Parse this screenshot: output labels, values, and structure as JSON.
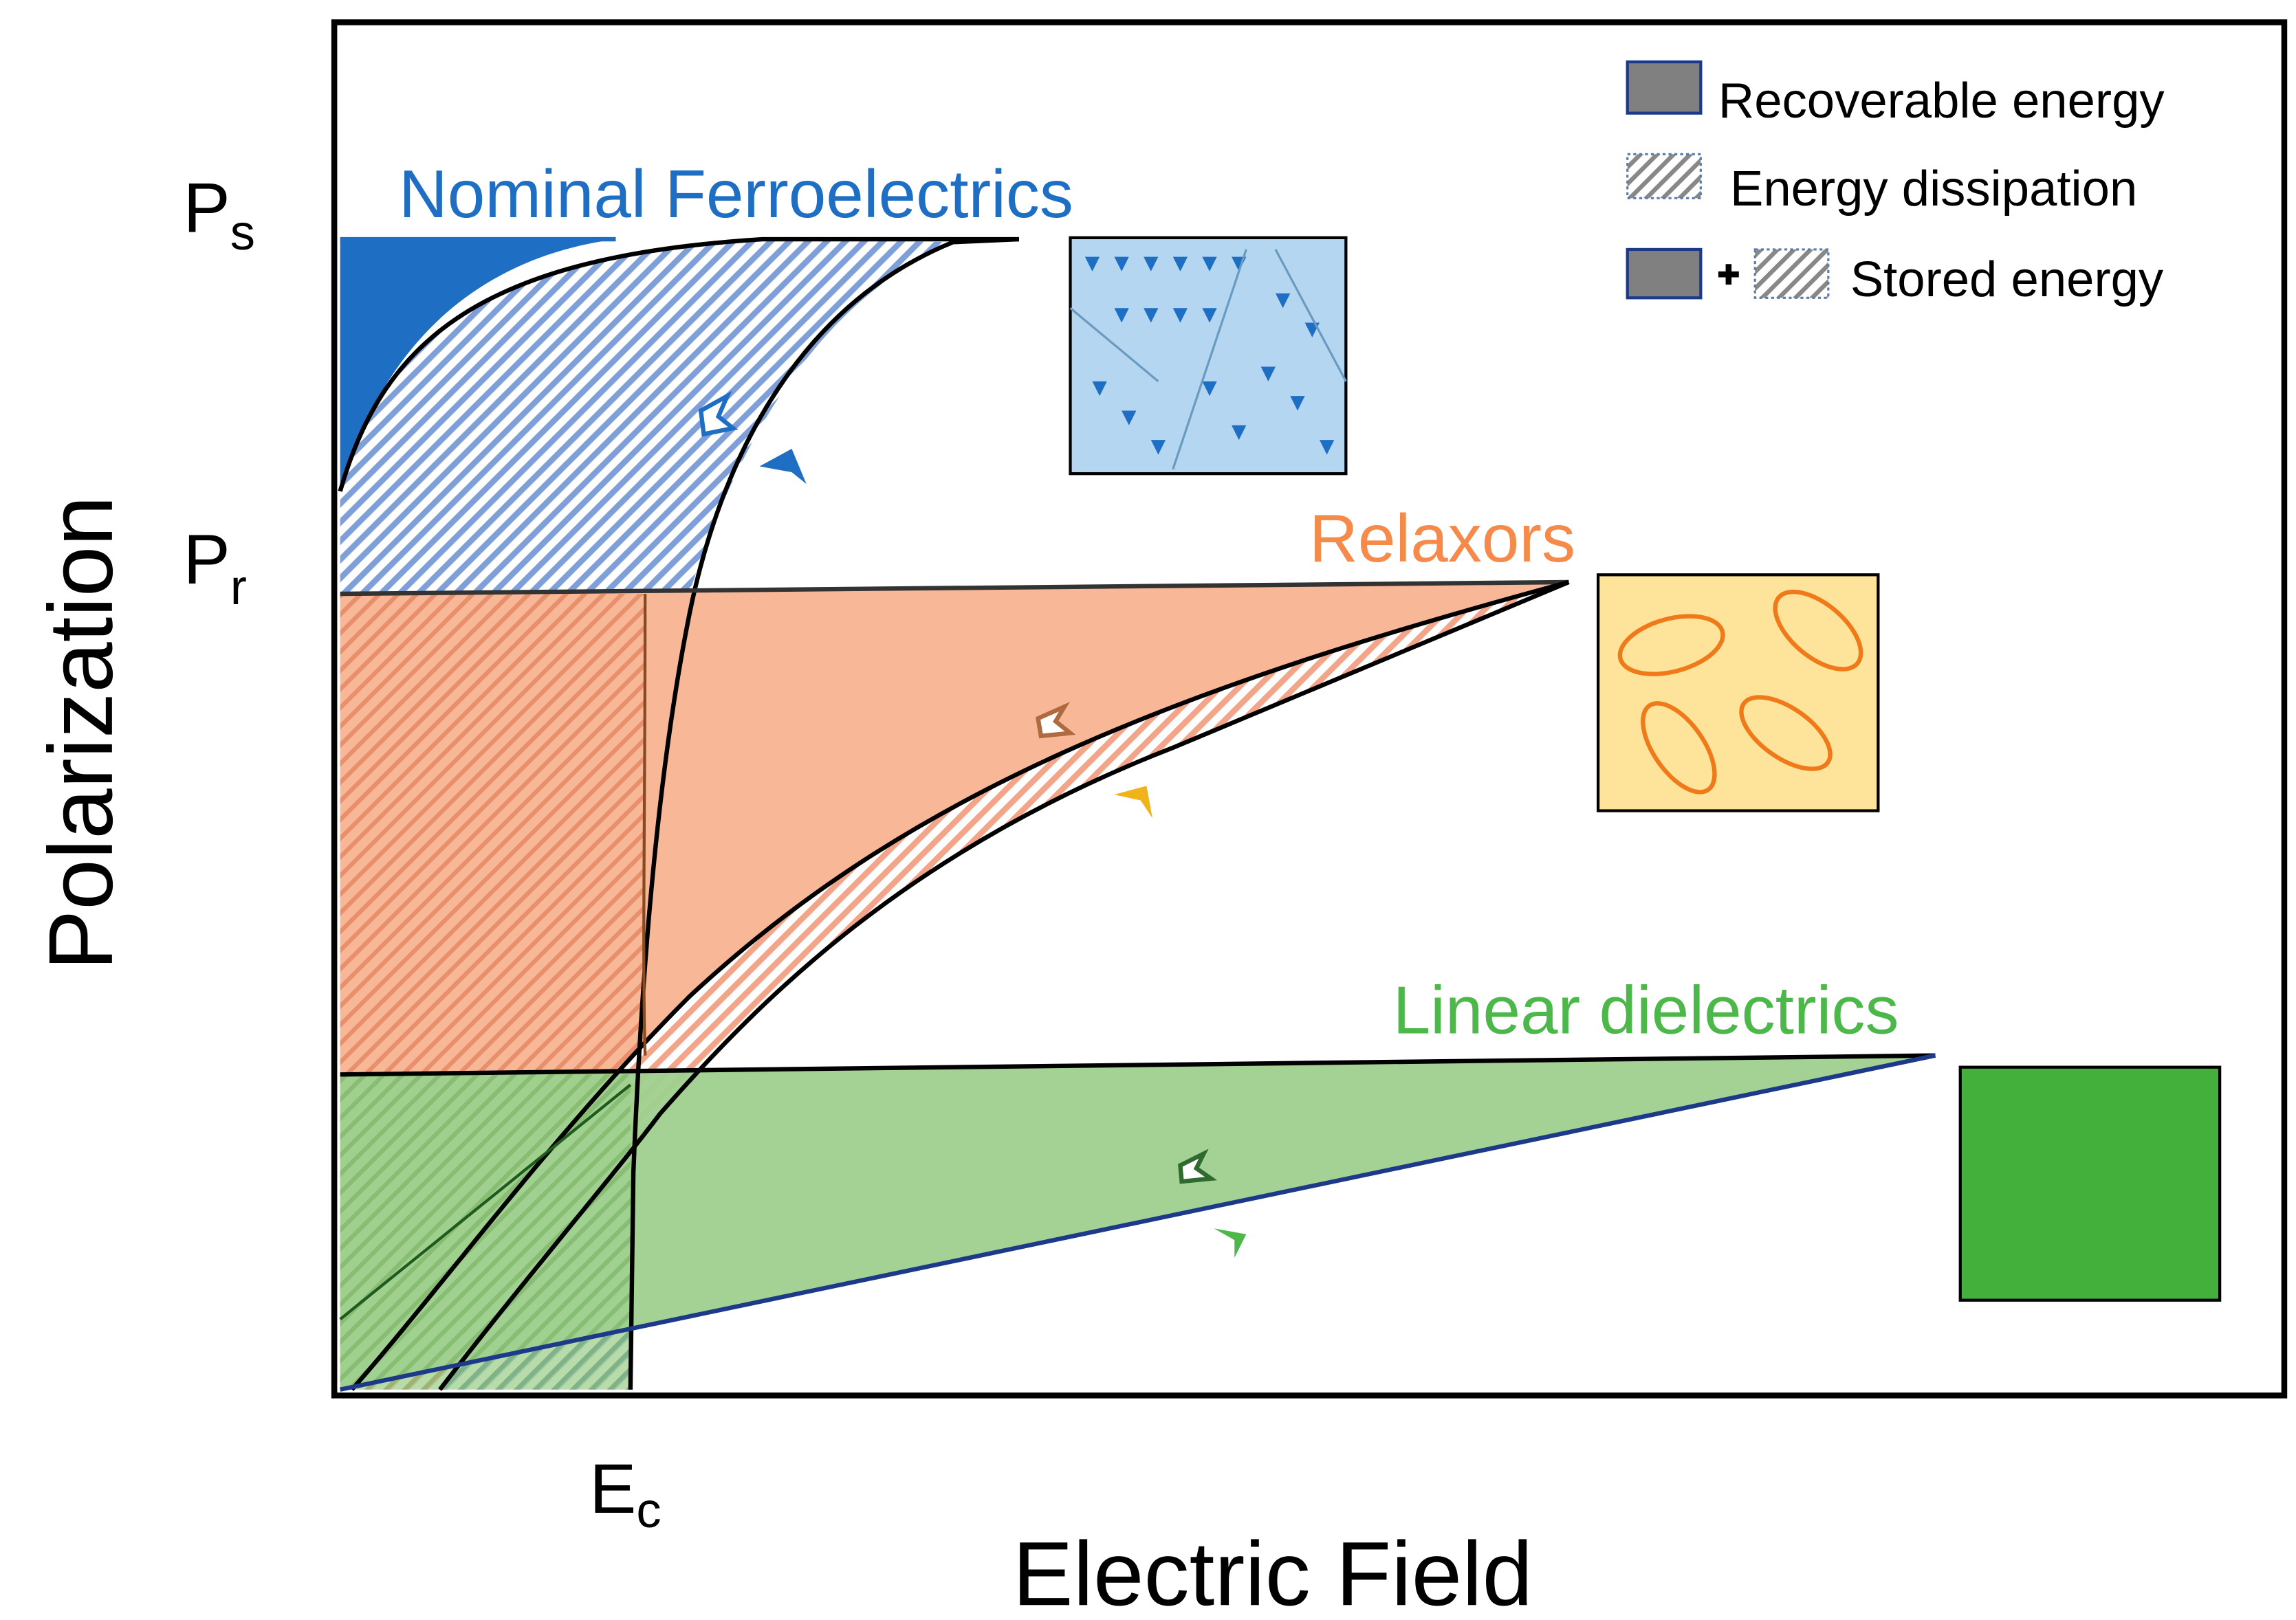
{
  "axes": {
    "y_label": "Polarization",
    "x_label": "Electric Field"
  },
  "markers": {
    "ps": {
      "main": "P",
      "sub": "s"
    },
    "pr": {
      "main": "P",
      "sub": "r"
    },
    "ec": {
      "main": "E",
      "sub": "c"
    }
  },
  "materials": {
    "ferroelectric": "Nominal Ferroelectrics",
    "relaxor": "Relaxors",
    "linear": "Linear dielectrics"
  },
  "legend": {
    "recoverable": "Recoverable energy",
    "dissipation": "Energy dissipation",
    "stored": "Stored energy"
  }
}
